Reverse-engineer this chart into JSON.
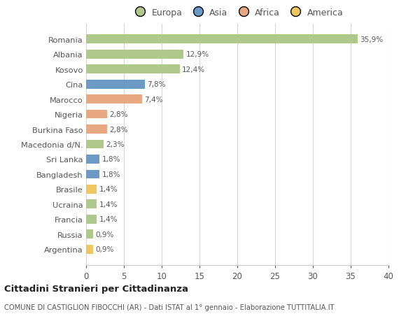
{
  "countries": [
    "Romania",
    "Albania",
    "Kosovo",
    "Cina",
    "Marocco",
    "Nigeria",
    "Burkina Faso",
    "Macedonia d/N.",
    "Sri Lanka",
    "Bangladesh",
    "Brasile",
    "Ucraina",
    "Francia",
    "Russia",
    "Argentina"
  ],
  "values": [
    35.9,
    12.9,
    12.4,
    7.8,
    7.4,
    2.8,
    2.8,
    2.3,
    1.8,
    1.8,
    1.4,
    1.4,
    1.4,
    0.9,
    0.9
  ],
  "labels": [
    "35,9%",
    "12,9%",
    "12,4%",
    "7,8%",
    "7,4%",
    "2,8%",
    "2,8%",
    "2,3%",
    "1,8%",
    "1,8%",
    "1,4%",
    "1,4%",
    "1,4%",
    "0,9%",
    "0,9%"
  ],
  "continents": [
    "Europa",
    "Europa",
    "Europa",
    "Asia",
    "Africa",
    "Africa",
    "Africa",
    "Europa",
    "Asia",
    "Asia",
    "America",
    "Europa",
    "Europa",
    "Europa",
    "America"
  ],
  "colors": {
    "Europa": "#aec98a",
    "Asia": "#6b9ac4",
    "Africa": "#e8a882",
    "America": "#f0c75e"
  },
  "legend_order": [
    "Europa",
    "Asia",
    "Africa",
    "America"
  ],
  "title": "Cittadini Stranieri per Cittadinanza",
  "subtitle": "COMUNE DI CASTIGLION FIBOCCHI (AR) - Dati ISTAT al 1° gennaio - Elaborazione TUTTITALIA.IT",
  "xlim": [
    0,
    40
  ],
  "xticks": [
    0,
    5,
    10,
    15,
    20,
    25,
    30,
    35,
    40
  ],
  "bg_color": "#ffffff",
  "grid_color": "#d5d5d5",
  "bar_height": 0.6
}
